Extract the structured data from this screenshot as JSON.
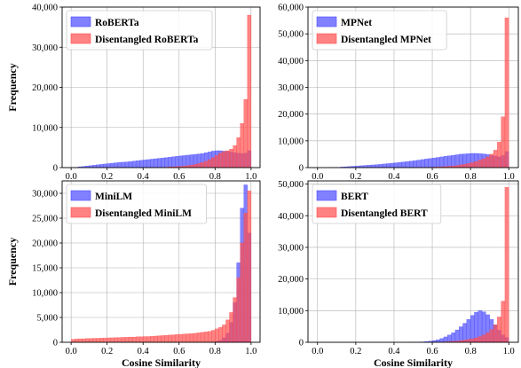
{
  "colors": {
    "disentangled": "#ff4d4d",
    "original": "#4b4bff",
    "grid": "#b0b0b0",
    "axis": "#000000"
  },
  "shared": {
    "ylabel": "Frequency",
    "xlabel": "Cosine Similarity",
    "xticks": [
      "0.0",
      "0.2",
      "0.4",
      "0.6",
      "0.8",
      "1.0"
    ]
  },
  "chart_data": [
    {
      "type": "bar",
      "subtype": "histogram",
      "panel": "top-left",
      "bins": 50,
      "xlim": [
        -0.05,
        1.05
      ],
      "ylim": [
        0,
        40000
      ],
      "ylabel": "Frequency",
      "xlabel": "",
      "yticks": [
        0,
        10000,
        20000,
        30000,
        40000
      ],
      "ytick_labels": [
        "0",
        "10,000",
        "20,000",
        "30,000",
        "40,000"
      ],
      "xticks": [
        0.0,
        0.2,
        0.4,
        0.6,
        0.8,
        1.0
      ],
      "xtick_labels": [
        "0.0",
        "0.2",
        "0.4",
        "0.6",
        "0.8",
        "1.0"
      ],
      "legend": "upper-left",
      "grid": true,
      "series": [
        {
          "name": "RoBERTa",
          "values": [
            10,
            80,
            200,
            300,
            400,
            500,
            600,
            700,
            800,
            900,
            1000,
            1100,
            1200,
            1300,
            1350,
            1400,
            1500,
            1600,
            1700,
            1800,
            1900,
            2000,
            2100,
            2200,
            2300,
            2400,
            2500,
            2600,
            2700,
            2800,
            2900,
            3000,
            3100,
            3200,
            3300,
            3400,
            3500,
            3700,
            3900,
            4100,
            4200,
            4200,
            4100,
            4000,
            3900,
            3700,
            3600,
            3500,
            3600,
            4200
          ]
        },
        {
          "name": "Disentangled RoBERTa",
          "values": [
            0,
            0,
            0,
            0,
            0,
            0,
            0,
            0,
            0,
            0,
            0,
            0,
            0,
            0,
            0,
            0,
            0,
            0,
            0,
            0,
            0,
            10,
            20,
            30,
            50,
            70,
            100,
            150,
            200,
            250,
            300,
            400,
            500,
            600,
            800,
            1000,
            1300,
            1600,
            2000,
            2500,
            3000,
            3600,
            4000,
            4200,
            4600,
            5500,
            7500,
            11000,
            17000,
            38000
          ]
        }
      ]
    },
    {
      "type": "bar",
      "subtype": "histogram",
      "panel": "top-right",
      "bins": 50,
      "xlim": [
        -0.05,
        1.05
      ],
      "ylim": [
        0,
        60000
      ],
      "ylabel": "",
      "xlabel": "",
      "yticks": [
        0,
        10000,
        20000,
        30000,
        40000,
        50000,
        60000
      ],
      "ytick_labels": [
        "0",
        "10,000",
        "20,000",
        "30,000",
        "40,000",
        "50,000",
        "60,000"
      ],
      "xticks": [
        0.0,
        0.2,
        0.4,
        0.6,
        0.8,
        1.0
      ],
      "xtick_labels": [
        "0.0",
        "0.2",
        "0.4",
        "0.6",
        "0.8",
        "1.0"
      ],
      "legend": "upper-left",
      "grid": true,
      "series": [
        {
          "name": "MPNet",
          "values": [
            0,
            0,
            0,
            20,
            50,
            100,
            200,
            300,
            400,
            500,
            600,
            700,
            800,
            900,
            1000,
            1100,
            1200,
            1350,
            1500,
            1650,
            1800,
            1950,
            2100,
            2250,
            2400,
            2600,
            2800,
            3000,
            3200,
            3400,
            3600,
            3800,
            4000,
            4200,
            4400,
            4600,
            4800,
            5000,
            5100,
            5200,
            5300,
            5300,
            5200,
            5100,
            4900,
            4600,
            4300,
            4000,
            4500,
            6000
          ]
        },
        {
          "name": "Disentangled MPNet",
          "values": [
            0,
            0,
            0,
            0,
            0,
            0,
            0,
            0,
            0,
            0,
            0,
            0,
            0,
            0,
            0,
            0,
            0,
            0,
            0,
            0,
            0,
            0,
            0,
            0,
            10,
            20,
            30,
            50,
            80,
            120,
            160,
            220,
            300,
            400,
            500,
            600,
            800,
            1000,
            1200,
            1500,
            1900,
            2300,
            2800,
            3300,
            4000,
            5000,
            6500,
            9500,
            19000,
            56000
          ]
        }
      ]
    },
    {
      "type": "bar",
      "subtype": "histogram",
      "panel": "bottom-left",
      "bins": 50,
      "xlim": [
        -0.05,
        1.05
      ],
      "ylim": [
        0,
        32500
      ],
      "ylabel": "Frequency",
      "xlabel": "Cosine Similarity",
      "yticks": [
        0,
        5000,
        10000,
        15000,
        20000,
        25000,
        30000
      ],
      "ytick_labels": [
        "0",
        "5,000",
        "10,000",
        "15,000",
        "20,000",
        "25,000",
        "30,000"
      ],
      "xticks": [
        0.0,
        0.2,
        0.4,
        0.6,
        0.8,
        1.0
      ],
      "xtick_labels": [
        "0.0",
        "0.2",
        "0.4",
        "0.6",
        "0.8",
        "1.0"
      ],
      "legend": "upper-left",
      "grid": true,
      "series": [
        {
          "name": "MiniLM",
          "values": [
            0,
            0,
            0,
            0,
            0,
            0,
            0,
            0,
            0,
            0,
            0,
            0,
            0,
            0,
            0,
            0,
            0,
            0,
            0,
            0,
            0,
            0,
            0,
            0,
            0,
            0,
            0,
            0,
            0,
            0,
            0,
            0,
            0,
            0,
            0,
            0,
            0,
            0,
            10,
            50,
            150,
            400,
            900,
            1800,
            4000,
            8000,
            16000,
            27000,
            31700,
            22000
          ]
        },
        {
          "name": "Disentangled MiniLM",
          "values": [
            600,
            650,
            700,
            700,
            750,
            750,
            800,
            800,
            850,
            850,
            900,
            900,
            950,
            950,
            1000,
            1000,
            1050,
            1050,
            1100,
            1100,
            1150,
            1150,
            1200,
            1250,
            1300,
            1350,
            1400,
            1450,
            1500,
            1550,
            1600,
            1650,
            1700,
            1750,
            1800,
            1900,
            2000,
            2100,
            2200,
            2400,
            2700,
            3000,
            3500,
            4500,
            6000,
            9000,
            13000,
            20000,
            26000,
            30500
          ]
        }
      ]
    },
    {
      "type": "bar",
      "subtype": "histogram",
      "panel": "bottom-right",
      "bins": 50,
      "xlim": [
        -0.05,
        1.05
      ],
      "ylim": [
        0,
        51000
      ],
      "ylabel": "",
      "xlabel": "Cosine Similarity",
      "yticks": [
        0,
        10000,
        20000,
        30000,
        40000,
        50000
      ],
      "ytick_labels": [
        "0",
        "10,000",
        "20,000",
        "30,000",
        "40,000",
        "50,000"
      ],
      "xticks": [
        0.0,
        0.2,
        0.4,
        0.6,
        0.8,
        1.0
      ],
      "xtick_labels": [
        "0.0",
        "0.2",
        "0.4",
        "0.6",
        "0.8",
        "1.0"
      ],
      "legend": "upper-left",
      "grid": true,
      "series": [
        {
          "name": "BERT",
          "values": [
            0,
            0,
            0,
            0,
            0,
            0,
            0,
            0,
            0,
            0,
            0,
            0,
            0,
            0,
            0,
            0,
            0,
            0,
            0,
            0,
            0,
            0,
            0,
            0,
            10,
            30,
            60,
            120,
            200,
            350,
            550,
            800,
            1200,
            1700,
            2300,
            3000,
            3900,
            4900,
            6000,
            7200,
            8500,
            9500,
            10000,
            9600,
            8700,
            7200,
            5500,
            3800,
            2300,
            1500
          ]
        },
        {
          "name": "Disentangled BERT",
          "values": [
            0,
            0,
            0,
            0,
            0,
            0,
            0,
            0,
            0,
            0,
            0,
            0,
            0,
            0,
            0,
            0,
            0,
            0,
            0,
            0,
            0,
            0,
            0,
            0,
            0,
            0,
            0,
            0,
            0,
            10,
            30,
            60,
            100,
            150,
            220,
            300,
            400,
            520,
            680,
            880,
            1100,
            1400,
            1800,
            2300,
            3000,
            4000,
            5500,
            8000,
            13000,
            49000
          ]
        }
      ]
    }
  ]
}
